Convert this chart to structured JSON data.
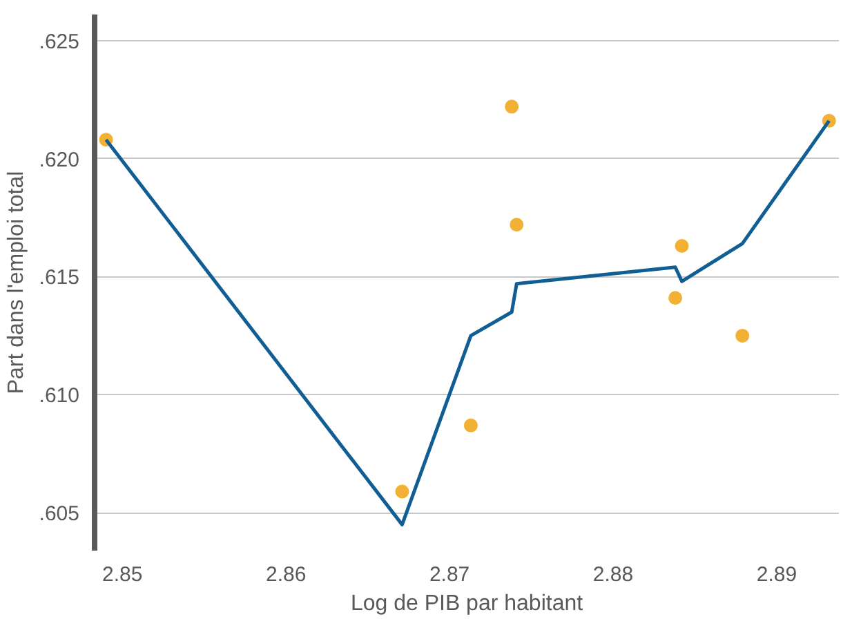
{
  "chart_data": {
    "type": "scatter",
    "xlabel": "Log de PIB par habitant",
    "ylabel": "Part dans l'emploi total",
    "xlim": [
      2.8483,
      2.8938
    ],
    "ylim": [
      0.6034,
      0.6261
    ],
    "xticks": [
      2.85,
      2.86,
      2.87,
      2.88,
      2.89
    ],
    "yticks": [
      {
        "value": 0.605,
        "label": ".605"
      },
      {
        "value": 0.61,
        "label": ".610"
      },
      {
        "value": 0.615,
        "label": ".615"
      },
      {
        "value": 0.62,
        "label": ".620"
      },
      {
        "value": 0.625,
        "label": ".625"
      }
    ],
    "grid": "y",
    "series": [
      {
        "color": "#f2b134",
        "marker": "circle",
        "x": [
          2.849,
          2.8671,
          2.8713,
          2.8738,
          2.8741,
          2.8838,
          2.8842,
          2.8879,
          2.8932
        ],
        "values": [
          0.6208,
          0.6059,
          0.6087,
          0.6222,
          0.6172,
          0.6141,
          0.6163,
          0.6125,
          0.6216
        ]
      },
      {
        "type": "line",
        "color": "#115e95",
        "line_style": "solid",
        "x": [
          2.849,
          2.8671,
          2.8713,
          2.8738,
          2.8741,
          2.8838,
          2.8842,
          2.8879,
          2.8932
        ],
        "values": [
          0.6208,
          0.6045,
          0.6125,
          0.6135,
          0.6147,
          0.6154,
          0.6148,
          0.6164,
          0.6216
        ]
      }
    ]
  }
}
